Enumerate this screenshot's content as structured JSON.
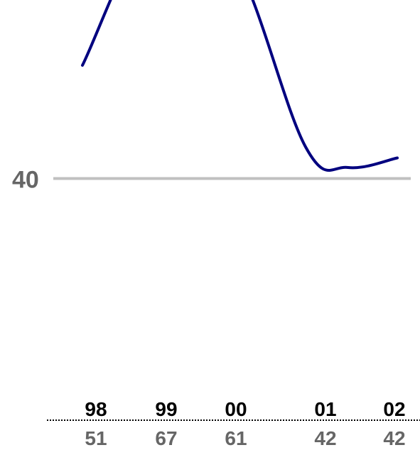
{
  "chart_data": {
    "type": "line",
    "title": "",
    "xlabel": "",
    "ylabel": "",
    "categories": [
      "98",
      "99",
      "00",
      "01",
      "02"
    ],
    "series": [
      {
        "values": [
          51,
          67,
          61,
          42,
          42
        ],
        "color": "#00007f"
      }
    ],
    "reference_line": {
      "value": 40,
      "label": "40",
      "color": "#c0c0c0",
      "label_color": "#666666"
    },
    "category_label_color": "#000000",
    "value_label_color": "#666666",
    "separator_color": "#000000",
    "grid": false,
    "legend": "none"
  }
}
